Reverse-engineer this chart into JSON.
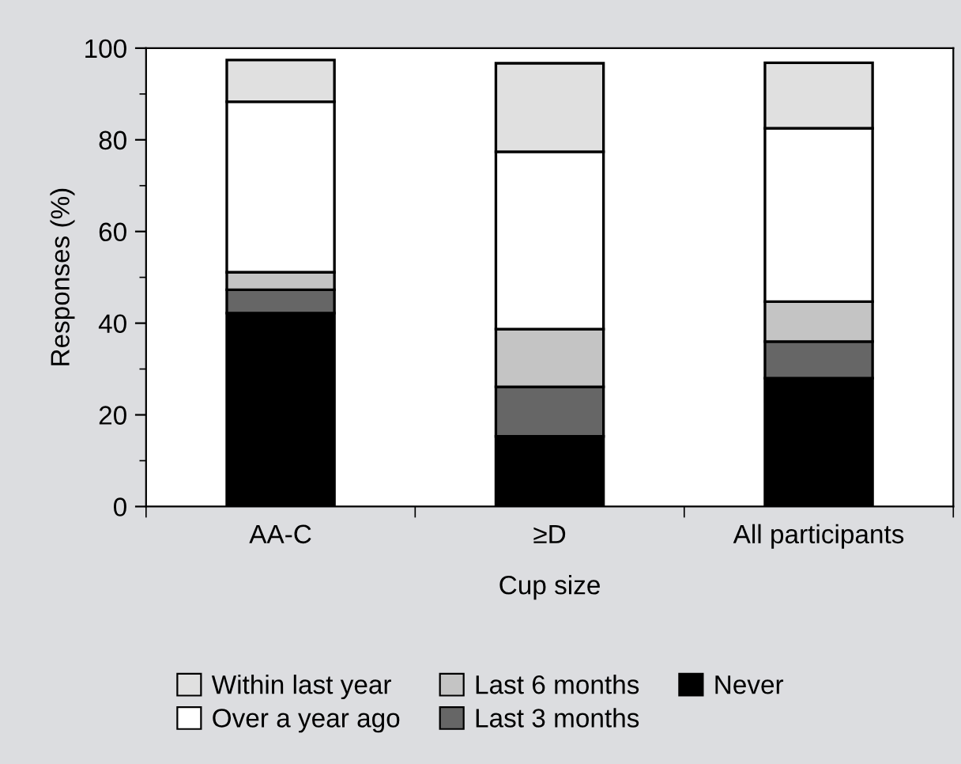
{
  "chart_data": {
    "type": "bar",
    "stacked": true,
    "xlabel": "Cup size",
    "ylabel": "Responses (%)",
    "categories": [
      "AA-C",
      "≥D",
      "All participants"
    ],
    "series": [
      {
        "name": "Never",
        "color": "#000000",
        "values": [
          42.2,
          15.3,
          28.0
        ]
      },
      {
        "name": "Last 3 months",
        "color": "#666666",
        "values": [
          5.1,
          10.8,
          8.0
        ]
      },
      {
        "name": "Last 6 months",
        "color": "#c4c4c4",
        "values": [
          3.8,
          12.6,
          8.7
        ]
      },
      {
        "name": "Over a year ago",
        "color": "#ffffff",
        "values": [
          37.2,
          38.7,
          37.8
        ]
      },
      {
        "name": "Within last year",
        "color": "#e0e0e0",
        "values": [
          9.1,
          19.3,
          14.3
        ]
      }
    ],
    "ylim": [
      0,
      100
    ],
    "yticks": [
      0,
      20,
      40,
      60,
      80,
      100
    ],
    "grid": false,
    "legend": "bottom"
  }
}
